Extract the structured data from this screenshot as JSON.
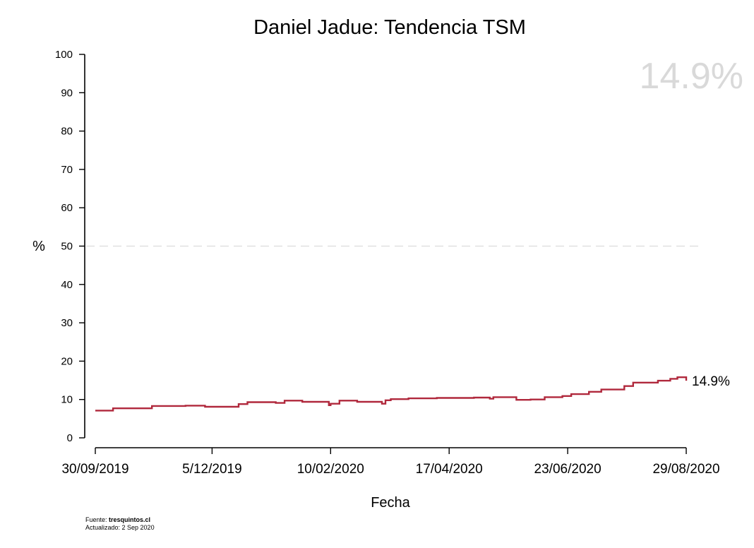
{
  "chart_data": {
    "type": "line",
    "title": "Daniel Jadue: Tendencia TSM",
    "xlabel": "Fecha",
    "ylabel": "%",
    "ylim": [
      0,
      100
    ],
    "yticks": [
      0,
      10,
      20,
      30,
      40,
      50,
      60,
      70,
      80,
      90,
      100
    ],
    "xticks": [
      "30/09/2019",
      "5/12/2019",
      "10/02/2020",
      "17/04/2020",
      "23/06/2020",
      "29/08/2020"
    ],
    "reference_line": {
      "y": 50,
      "style": "dashed"
    },
    "latest_value_label": "14.9%",
    "end_label": "14.9%",
    "line_color": "#b0283c",
    "step": true,
    "series": [
      {
        "values": [
          [
            "30/09/2019",
            7.1
          ],
          [
            "05/10/2019",
            7.1
          ],
          [
            "10/10/2019",
            7.7
          ],
          [
            "20/10/2019",
            7.7
          ],
          [
            "01/11/2019",
            8.3
          ],
          [
            "20/11/2019",
            8.4
          ],
          [
            "01/12/2019",
            8.1
          ],
          [
            "20/12/2019",
            8.8
          ],
          [
            "25/12/2019",
            9.3
          ],
          [
            "10/01/2020",
            9.1
          ],
          [
            "15/01/2020",
            9.7
          ],
          [
            "25/01/2020",
            9.4
          ],
          [
            "09/02/2020",
            8.5
          ],
          [
            "10/02/2020",
            8.9
          ],
          [
            "15/02/2020",
            9.7
          ],
          [
            "25/02/2020",
            9.4
          ],
          [
            "10/03/2020",
            8.9
          ],
          [
            "12/03/2020",
            9.8
          ],
          [
            "15/03/2020",
            10.1
          ],
          [
            "25/03/2020",
            10.3
          ],
          [
            "10/04/2020",
            10.4
          ],
          [
            "01/05/2020",
            10.5
          ],
          [
            "10/05/2020",
            10.2
          ],
          [
            "12/05/2020",
            10.6
          ],
          [
            "25/05/2020",
            9.9
          ],
          [
            "02/06/2020",
            10.0
          ],
          [
            "10/06/2020",
            10.6
          ],
          [
            "20/06/2020",
            10.9
          ],
          [
            "25/06/2020",
            11.4
          ],
          [
            "05/07/2020",
            12.0
          ],
          [
            "12/07/2020",
            12.6
          ],
          [
            "25/07/2020",
            13.5
          ],
          [
            "30/07/2020",
            14.4
          ],
          [
            "13/08/2020",
            14.9
          ],
          [
            "20/08/2020",
            15.4
          ],
          [
            "24/08/2020",
            15.8
          ],
          [
            "29/08/2020",
            14.9
          ]
        ]
      }
    ]
  },
  "footer": {
    "source_prefix": "Fuente: ",
    "source_name": "tresquintos.cl",
    "updated": "Actualizado: 2 Sep 2020"
  }
}
